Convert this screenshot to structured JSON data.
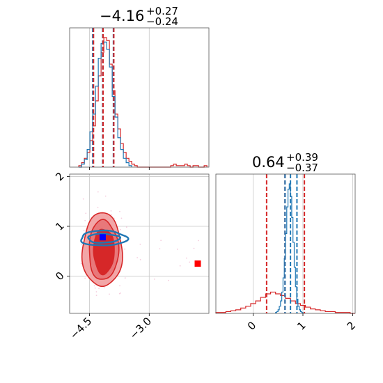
{
  "colors": {
    "red": "#d62728",
    "blue": "#1f77b4",
    "grid": "#c8c8c8",
    "axis": "#555555",
    "red_fill_outer": "#f2a6a7",
    "red_fill_mid": "#e8787a",
    "red_fill_inner": "#d62728",
    "truth_red": "#ff0000",
    "truth_blue": "#0000ff"
  },
  "chart_data": [
    {
      "type": "histogram",
      "panel": "top-left",
      "title_value": "−4.16",
      "title_sup": "+0.27",
      "title_sub": "−0.24",
      "x_range": [
        -5.0,
        -1.5
      ],
      "bin_width": 0.07,
      "xgrid": [
        -4.5,
        -3.0
      ],
      "quantile_lines": {
        "red": [
          -4.4,
          -4.16,
          -3.89
        ],
        "blue": [
          -4.42,
          -4.17,
          -3.9
        ]
      },
      "series": [
        {
          "color": "red",
          "x_start": -4.77,
          "counts": [
            1,
            3,
            6,
            10,
            18,
            28,
            45,
            62,
            78,
            88,
            86,
            70,
            52,
            36,
            26,
            16,
            10,
            6,
            4,
            2,
            1,
            0,
            0,
            0,
            0,
            0,
            0,
            0,
            0,
            0,
            0,
            0,
            0,
            1,
            2,
            1,
            1,
            1,
            2,
            1,
            0,
            1,
            1,
            0,
            0,
            1
          ]
        },
        {
          "color": "blue",
          "x_start": -4.77,
          "counts": [
            0,
            2,
            5,
            12,
            24,
            36,
            55,
            74,
            84,
            85,
            80,
            68,
            48,
            34,
            20,
            12,
            6,
            3,
            1
          ]
        }
      ]
    },
    {
      "type": "contour",
      "panel": "bottom-left",
      "x_range": [
        -5.0,
        -1.5
      ],
      "y_range": [
        -0.75,
        2.05
      ],
      "xticks": [
        -4.5,
        -3.0
      ],
      "xtick_labels": [
        "−4.5",
        "−3.0"
      ],
      "yticks": [
        0,
        1,
        2
      ],
      "ytick_labels": [
        "0",
        "1",
        "2"
      ],
      "red_contours": [
        {
          "level": "outer",
          "center": [
            -4.18,
            0.52
          ],
          "half_width": 0.5,
          "half_height": 0.74
        },
        {
          "level": "mid",
          "center": [
            -4.15,
            0.52
          ],
          "half_width": 0.37,
          "half_height": 0.6
        },
        {
          "level": "inner",
          "center": [
            -4.14,
            0.5
          ],
          "half_width": 0.26,
          "half_height": 0.45
        }
      ],
      "blue_contours": [
        {
          "level": "outer",
          "center": [
            -4.15,
            0.76
          ],
          "half_width": 0.58,
          "half_height": 0.15
        },
        {
          "level": "inner",
          "center": [
            -4.15,
            0.76
          ],
          "half_width": 0.4,
          "half_height": 0.09
        }
      ],
      "markers": [
        {
          "color": "truth_blue",
          "x": -4.17,
          "y": 0.78
        },
        {
          "color": "truth_red",
          "x": -1.78,
          "y": 0.25
        }
      ]
    },
    {
      "type": "histogram",
      "panel": "bottom-right",
      "title_value": "0.64",
      "title_sup": "+0.39",
      "title_sub": "−0.37",
      "x_range": [
        -0.75,
        2.05
      ],
      "xticks": [
        0,
        1,
        2
      ],
      "xtick_labels": [
        "0",
        "1",
        "2"
      ],
      "quantile_lines": {
        "red": [
          0.27,
          0.64,
          1.03
        ],
        "blue": [
          0.64,
          0.75,
          0.88
        ]
      },
      "series": [
        {
          "color": "red",
          "x_start": -0.75,
          "bin_width": 0.1,
          "counts": [
            1,
            1,
            2,
            3,
            4,
            6,
            8,
            11,
            14,
            18,
            22,
            24,
            22,
            20,
            17,
            14,
            11,
            9,
            7,
            5,
            4,
            3,
            2,
            2,
            1,
            1,
            1,
            0
          ]
        },
        {
          "color": "blue",
          "x_start": 0.45,
          "bin_width": 0.025,
          "counts": [
            1,
            2,
            4,
            8,
            14,
            24,
            40,
            62,
            90,
            120,
            140,
            146,
            132,
            108,
            80,
            52,
            30,
            16,
            8,
            4,
            2,
            1
          ]
        }
      ]
    }
  ]
}
